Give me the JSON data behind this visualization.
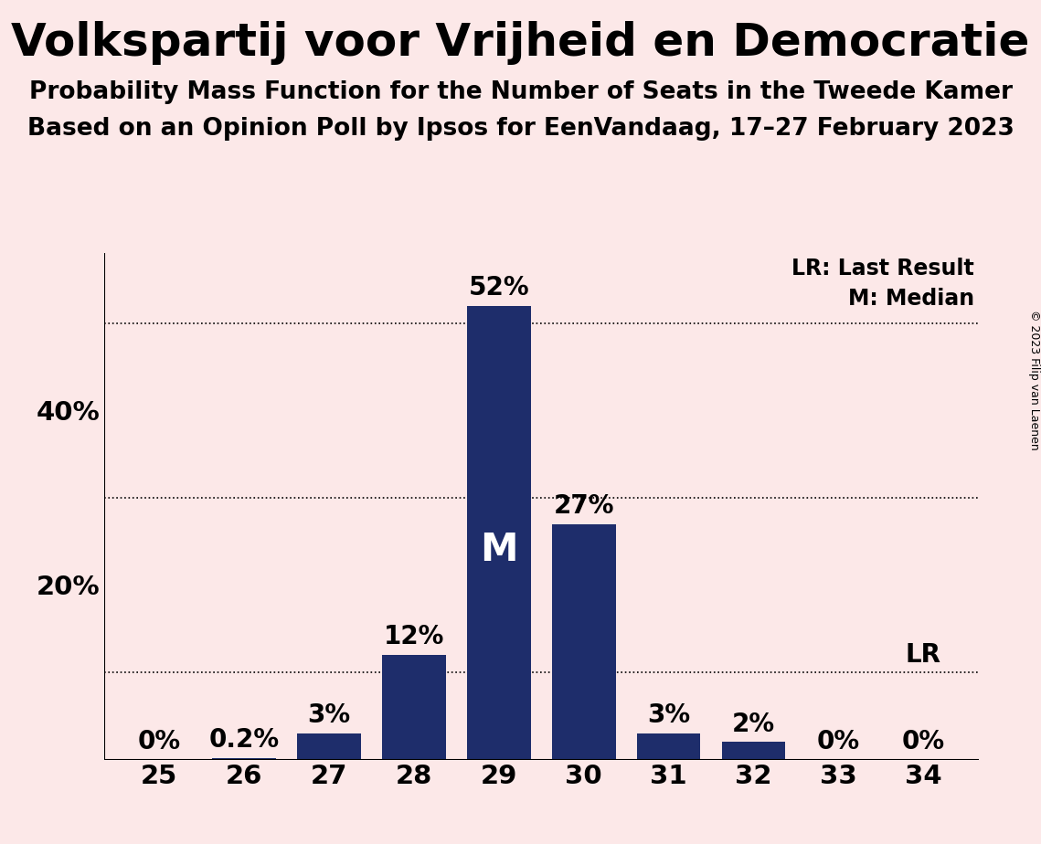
{
  "title": "Volkspartij voor Vrijheid en Democratie",
  "subtitle1": "Probability Mass Function for the Number of Seats in the Tweede Kamer",
  "subtitle2": "Based on an Opinion Poll by Ipsos for EenVandaag, 17–27 February 2023",
  "copyright": "© 2023 Filip van Laenen",
  "seats": [
    25,
    26,
    27,
    28,
    29,
    30,
    31,
    32,
    33,
    34
  ],
  "probabilities": [
    0.0,
    0.2,
    3.0,
    12.0,
    52.0,
    27.0,
    3.0,
    2.0,
    0.0,
    0.0
  ],
  "bar_color": "#1e2d6b",
  "background_color": "#fce8e8",
  "median_seat": 29,
  "last_result_seat": 34,
  "dotted_lines": [
    10,
    30,
    50
  ],
  "ylim": [
    0,
    58
  ],
  "legend_lr": "LR: Last Result",
  "legend_m": "M: Median",
  "label_fontsize": 17,
  "bar_label_fontsize": 20,
  "title_fontsize": 36,
  "subtitle_fontsize": 19,
  "tick_fontsize": 21,
  "median_label_fontsize": 30,
  "lr_label_fontsize": 20,
  "copyright_fontsize": 9
}
